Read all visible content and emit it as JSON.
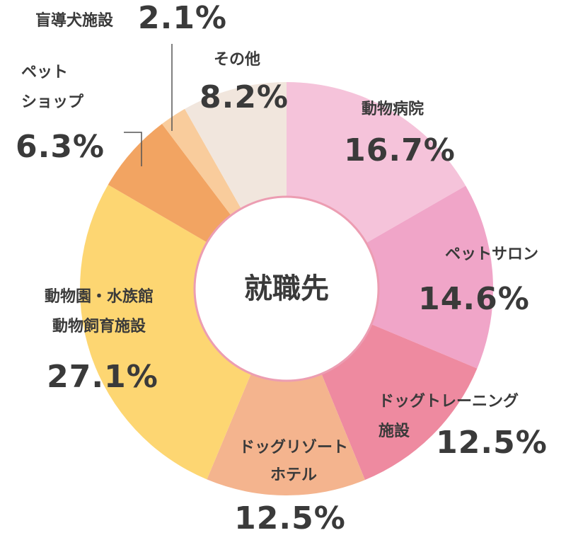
{
  "chart_data": {
    "type": "donut",
    "center_label": "就職先",
    "categories": [
      [
        "動物病院"
      ],
      [
        "ペットサロン"
      ],
      [
        "ドッグトレーニング",
        "施設"
      ],
      [
        "ドッグリゾート",
        "ホテル"
      ],
      [
        "動物園・水族館",
        "動物飼育施設"
      ],
      [
        "ペット",
        "ショップ"
      ],
      [
        "盲導犬施設"
      ],
      [
        "その他"
      ]
    ],
    "values": [
      16.7,
      14.6,
      12.5,
      12.5,
      27.1,
      6.3,
      2.1,
      8.2
    ],
    "value_labels": [
      "16.7%",
      "14.6%",
      "12.5%",
      "12.5%",
      "27.1%",
      "6.3%",
      "2.1%",
      "8.2%"
    ],
    "colors": [
      "#f5c3da",
      "#f0a5c8",
      "#ee8aa0",
      "#f4b48e",
      "#fdd672",
      "#f2a462",
      "#f9cc9c",
      "#f1e6dd"
    ]
  }
}
